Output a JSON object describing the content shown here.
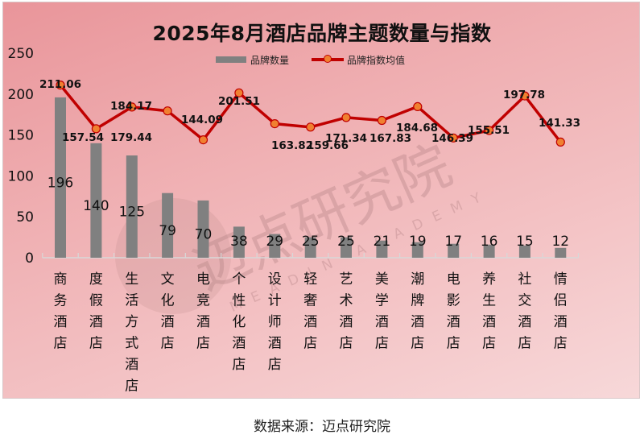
{
  "title": "2025年8月酒店品牌主题数量与指数",
  "legend": {
    "bar_label": "品牌数量",
    "line_label": "品牌指数均值"
  },
  "source": "数据来源：迈点研究院",
  "watermark": {
    "cn": "迈点研究院",
    "en": "MEADIN ACADEMY"
  },
  "colors": {
    "bar": "#808080",
    "line": "#c00000",
    "marker": "#f08030",
    "background": "#efaeb1"
  },
  "chart_data": {
    "type": "bar+line",
    "title": "2025年8月酒店品牌主题数量与指数",
    "xlabel": "",
    "ylabel": "",
    "ylim": [
      0,
      250
    ],
    "yticks": [
      0,
      50,
      100,
      150,
      200,
      250
    ],
    "grid": false,
    "legend_position": "top",
    "categories": [
      "商务酒店",
      "度假酒店",
      "生活方式酒店",
      "文化酒店",
      "电竞酒店",
      "个性化酒店",
      "设计师酒店",
      "轻奢酒店",
      "艺术酒店",
      "美学酒店",
      "潮牌酒店",
      "电影酒店",
      "养生酒店",
      "社交酒店",
      "情侣酒店"
    ],
    "series": [
      {
        "name": "品牌数量",
        "type": "bar",
        "values": [
          196,
          140,
          125,
          79,
          70,
          38,
          29,
          25,
          25,
          21,
          19,
          17,
          16,
          15,
          12
        ]
      },
      {
        "name": "品牌指数均值",
        "type": "line",
        "values": [
          211.06,
          157.54,
          184.17,
          179.44,
          144.09,
          201.51,
          163.82,
          159.66,
          171.34,
          167.83,
          184.68,
          146.39,
          155.51,
          197.78,
          141.33
        ]
      }
    ]
  }
}
